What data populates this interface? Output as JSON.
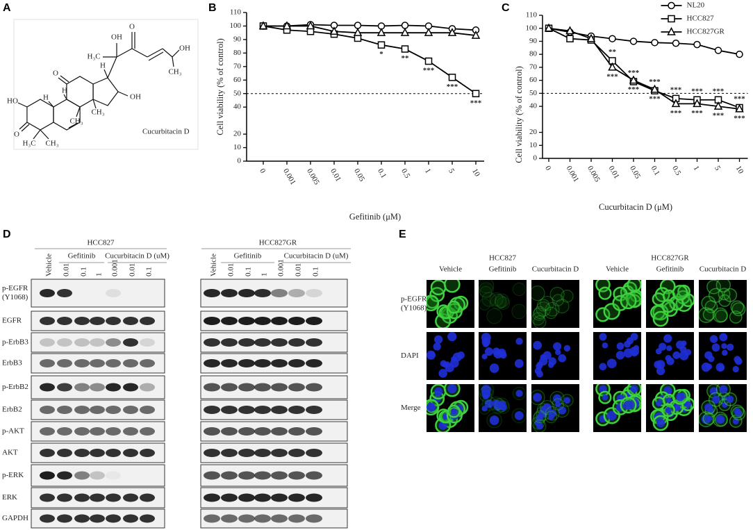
{
  "panel_a": {
    "letter": "A",
    "caption": "Cucurbitacin D",
    "labels": [
      "OH",
      "H₃C",
      "O",
      "OH",
      "CH₃",
      "O",
      "H",
      "H",
      "OH",
      "CH₃",
      "HO",
      "O",
      "H₃C",
      "CH₃",
      "H",
      "CH₃"
    ]
  },
  "chart_data": [
    {
      "type": "line",
      "letter": "B",
      "x_label": "Gefitinib (μM)",
      "y_label": "Cell viability (% of control)",
      "categories": [
        "0",
        "0.001",
        "0.005",
        "0.01",
        "0.05",
        "0.1",
        "0.5",
        "1",
        "5",
        "10"
      ],
      "ylim": [
        0,
        110
      ],
      "yticks": [
        0,
        10,
        20,
        40,
        50,
        60,
        70,
        80,
        90,
        100,
        110
      ],
      "reference_line": 50,
      "series": [
        {
          "marker": "circle",
          "color": "#000000",
          "values": [
            100,
            100,
            101,
            100.5,
            100.5,
            100,
            100.5,
            100,
            98,
            97
          ]
        },
        {
          "marker": "square",
          "color": "#000000",
          "values": [
            100,
            97,
            96,
            94,
            91,
            86,
            83,
            74,
            62,
            50
          ],
          "significance": [
            null,
            null,
            null,
            null,
            null,
            "*",
            "**",
            "***",
            "***",
            "***"
          ],
          "significance_side": "below"
        },
        {
          "marker": "triangle",
          "color": "#000000",
          "values": [
            100,
            100,
            100,
            96,
            95,
            95,
            95,
            95,
            95,
            93
          ]
        }
      ]
    },
    {
      "type": "line",
      "letter": "C",
      "x_label": "Cucurbitacin D (μM)",
      "y_label": "Cell viability (% of control)",
      "categories": [
        "0",
        "0.001",
        "0.005",
        "0.01",
        "0.05",
        "0.1",
        "0.5",
        "1",
        "5",
        "10"
      ],
      "ylim": [
        0,
        110
      ],
      "yticks": [
        0,
        10,
        20,
        40,
        50,
        60,
        70,
        80,
        90,
        100,
        110
      ],
      "reference_line": 50,
      "legend": "upper right",
      "series": [
        {
          "name": "NL20",
          "marker": "circle",
          "color": "#000000",
          "values": [
            100,
            97,
            94,
            92,
            90,
            89,
            88.5,
            87.5,
            83,
            80
          ]
        },
        {
          "name": "HCC827",
          "marker": "square",
          "color": "#000000",
          "values": [
            100,
            92,
            91,
            75,
            59,
            52,
            46,
            45,
            45,
            39
          ],
          "significance": [
            null,
            null,
            null,
            "**",
            "***",
            "***",
            "***",
            "***",
            "***",
            "***"
          ],
          "significance_side": "above"
        },
        {
          "name": "HCC827GR",
          "marker": "triangle",
          "color": "#000000",
          "values": [
            100,
            98,
            92,
            70,
            60,
            53,
            42,
            42,
            40,
            38
          ],
          "significance": [
            null,
            null,
            null,
            "***",
            "***",
            "***",
            "***",
            "***",
            "***",
            "***"
          ],
          "significance_side": "below"
        }
      ]
    }
  ],
  "panel_d": {
    "letter": "D",
    "row_labels": [
      [
        "p-EGFR",
        "(Y1068)"
      ],
      [
        "EGFR"
      ],
      [
        "p-ErbB3"
      ],
      [
        "ErbB3"
      ],
      [
        "p-ErbB2"
      ],
      [
        "ErbB2"
      ],
      [
        "p-AKT"
      ],
      [
        "AKT"
      ],
      [
        "p-ERK"
      ],
      [
        "ERK"
      ],
      [
        "GAPDH"
      ]
    ],
    "blots": [
      {
        "cell_line": "HCC827",
        "groups": [
          "Gefitinib",
          "Cucurbitacin D (uM)"
        ],
        "lanes": [
          "Vehicle",
          "0.01",
          "0.1",
          "1",
          "0.001",
          "0.01",
          "0.1"
        ]
      },
      {
        "cell_line": "HCC827GR",
        "groups": [
          "Gefitinib",
          "Cucurbitacin D (uM)"
        ],
        "lanes": [
          "Vehicle",
          "0.01",
          "0.1",
          "1",
          "0.001",
          "0.01",
          "0.1"
        ]
      }
    ]
  },
  "panel_e": {
    "letter": "E",
    "row_labels": [
      [
        "p-EGFR",
        "(Y1068)"
      ],
      [
        "DAPI"
      ],
      [
        "Merge"
      ]
    ],
    "groups": [
      {
        "cell_line": "HCC827",
        "columns": [
          "Vehicle",
          "Gefitinib",
          "Cucurbitacin D"
        ]
      },
      {
        "cell_line": "HCC827GR",
        "columns": [
          "Vehicle",
          "Gefitinib",
          "Cucurbitacin D"
        ]
      }
    ]
  }
}
